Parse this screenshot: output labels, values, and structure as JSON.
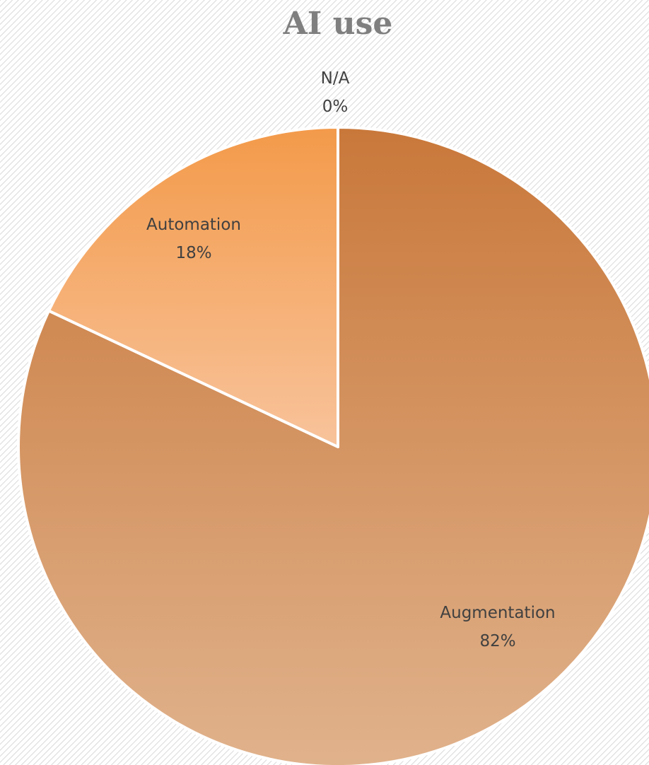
{
  "chart_data": {
    "type": "pie",
    "title": "AI use",
    "slices": [
      {
        "label": "N/A",
        "value": 0,
        "percent_label": "0%"
      },
      {
        "label": "Augmentation",
        "value": 82,
        "percent_label": "82%"
      },
      {
        "label": "Automation",
        "value": 18,
        "percent_label": "18%"
      }
    ],
    "legend": "none",
    "data_labels": "category name and percentage",
    "colors": {
      "augmentation_top": "#c9783a",
      "augmentation_bottom": "#e0b28c",
      "automation_top": "#f39a4a",
      "automation_bottom": "#f8c39b",
      "slice_border": "#ffffff",
      "title": "#7f7f7f",
      "label_text": "#404040",
      "background_hatch": "#d9d9d9"
    }
  }
}
